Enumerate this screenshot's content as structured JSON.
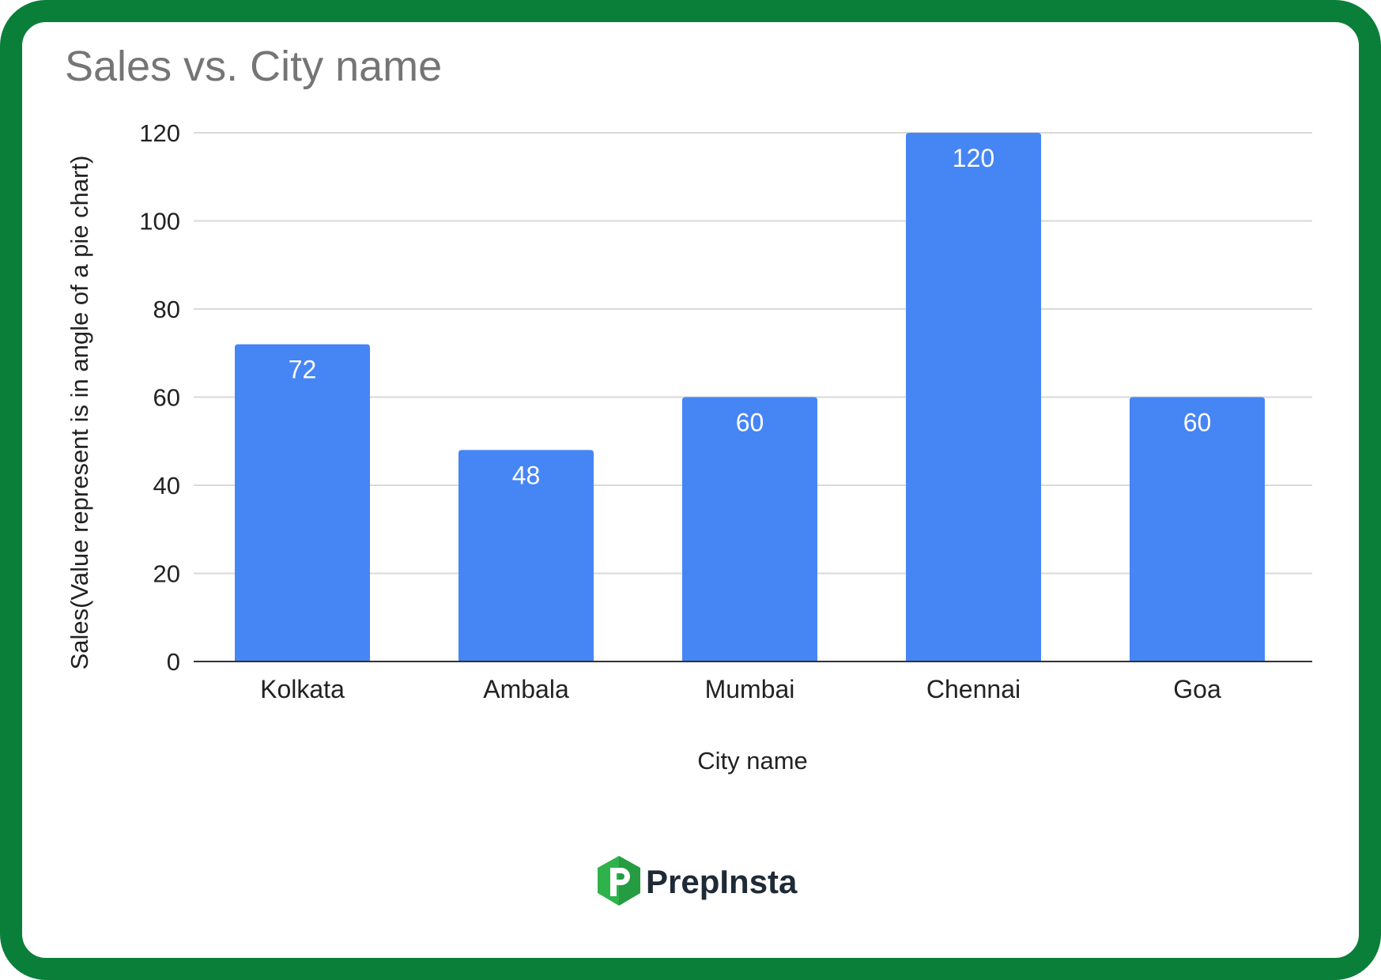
{
  "colors": {
    "frame": "#0a7f3a",
    "bar": "#4685f4",
    "grid": "#d9d9d9",
    "axis": "#333333",
    "logo_green": "#2fb24c",
    "logo_dark_green": "#1e8a38"
  },
  "brand": {
    "name": "PrepInsta",
    "icon": "prepinsta-logo-icon"
  },
  "chart_data": {
    "type": "bar",
    "title": "Sales vs. City name",
    "xlabel": "City name",
    "ylabel": "Sales(Value represent is in angle of a pie chart)",
    "categories": [
      "Kolkata",
      "Ambala",
      "Mumbai",
      "Chennai",
      "Goa"
    ],
    "values": [
      72,
      48,
      60,
      120,
      60
    ],
    "data_labels": [
      "72",
      "48",
      "60",
      "120",
      "60"
    ],
    "ylim": [
      0,
      120
    ],
    "yticks": [
      0,
      20,
      40,
      60,
      80,
      100,
      120
    ],
    "grid": true,
    "legend": "none"
  }
}
